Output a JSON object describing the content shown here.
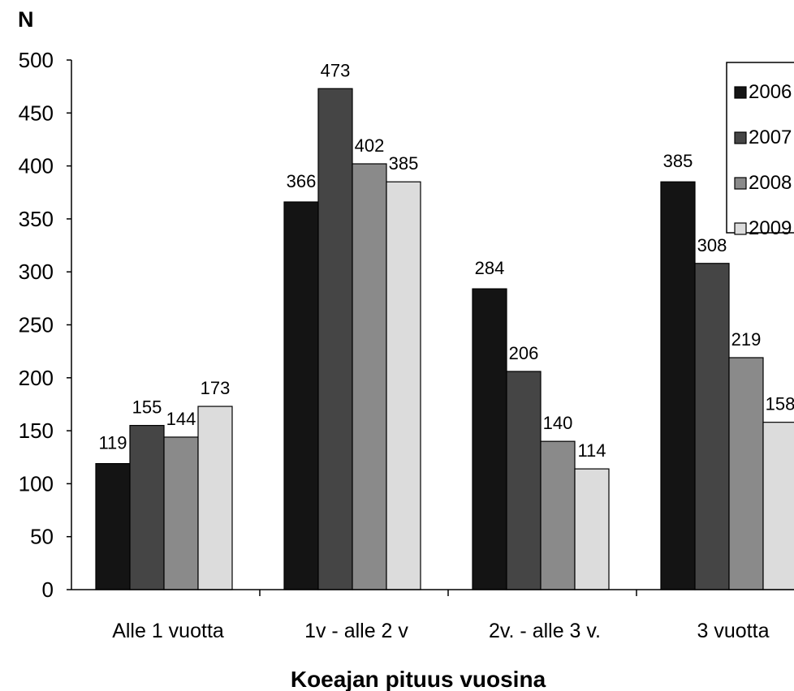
{
  "chart_data": {
    "type": "bar",
    "title": "",
    "ylabel": "N",
    "xlabel": "Koeajan pituus vuosina",
    "ylim": [
      0,
      500
    ],
    "yticks": [
      0,
      50,
      100,
      150,
      200,
      250,
      300,
      350,
      400,
      450,
      500
    ],
    "categories": [
      "Alle 1 vuotta",
      "1v - alle 2 v",
      "2v. - alle 3 v.",
      "3 vuotta"
    ],
    "series": [
      {
        "name": "2006",
        "color": "#141414",
        "values": [
          119,
          366,
          284,
          385
        ]
      },
      {
        "name": "2007",
        "color": "#454545",
        "values": [
          155,
          473,
          206,
          308
        ]
      },
      {
        "name": "2008",
        "color": "#8a8a8a",
        "values": [
          144,
          402,
          140,
          219
        ]
      },
      {
        "name": "2009",
        "color": "#dcdcdc",
        "values": [
          173,
          385,
          114,
          158
        ]
      }
    ],
    "legend": "top-right",
    "grid": false
  }
}
